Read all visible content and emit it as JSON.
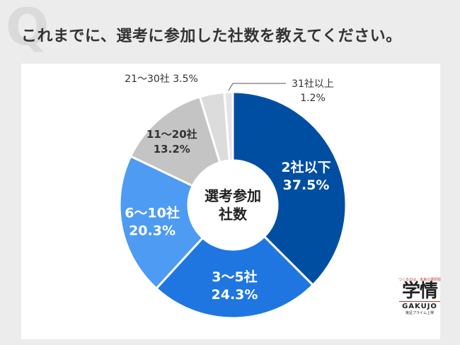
{
  "title": "これまでに、選考に参加した社数を教えてください。",
  "chart_data": {
    "type": "pie",
    "center_label": [
      "選考参加",
      "社数"
    ],
    "slices": [
      {
        "label": "2社以下",
        "value": 37.5,
        "value_text": "37.5%",
        "color": "#004ea2"
      },
      {
        "label": "3～5社",
        "value": 24.3,
        "value_text": "24.3%",
        "color": "#1f76e0"
      },
      {
        "label": "6～10社",
        "value": 20.3,
        "value_text": "20.3%",
        "color": "#4e9bf3"
      },
      {
        "label": "11～20社",
        "value": 13.2,
        "value_text": "13.2%",
        "color": "#c4c4c4"
      },
      {
        "label": "21～30社",
        "value": 3.5,
        "value_text": "3.5%",
        "color": "#dcdcdc"
      },
      {
        "label": "31社以上",
        "value": 1.2,
        "value_text": "1.2%",
        "color": "#e4e4e4"
      }
    ]
  },
  "logo": {
    "tagline": "つくるのは、未来の選択肢",
    "mark": "学情",
    "name": "GAKUJO",
    "sub": "東証プライム上場"
  }
}
